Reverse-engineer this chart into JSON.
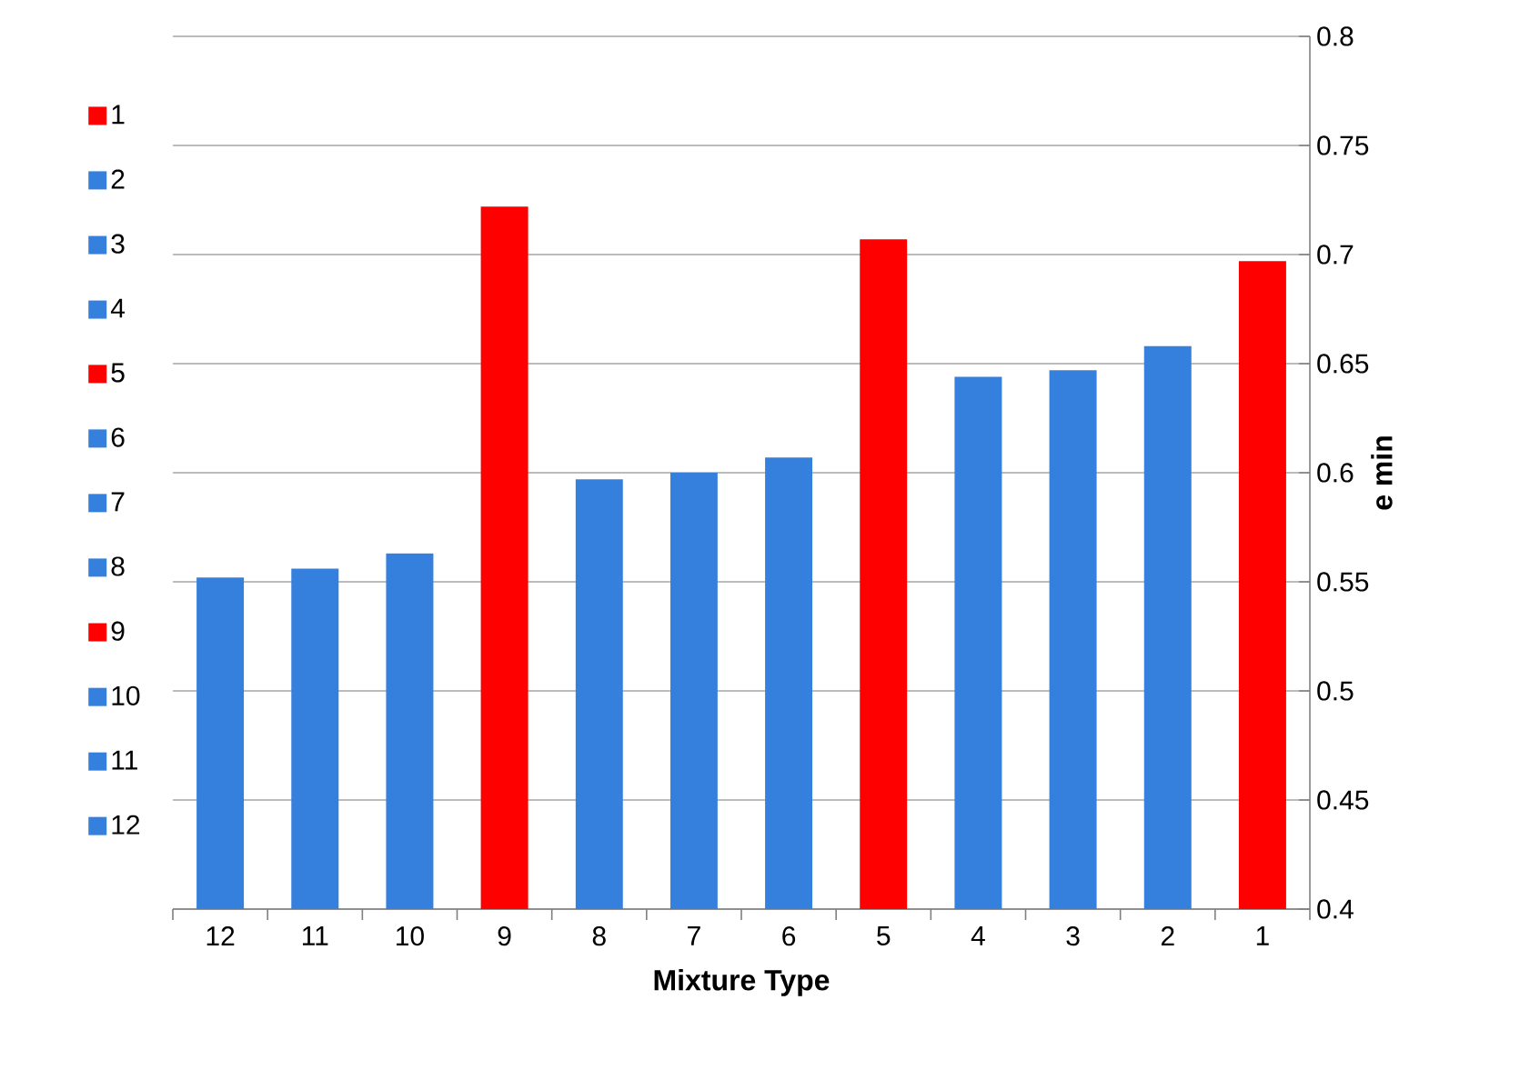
{
  "chart_data": {
    "type": "bar",
    "xlabel": "Mixture Type",
    "ylabel": "e min",
    "categories": [
      "12",
      "11",
      "10",
      "9",
      "8",
      "7",
      "6",
      "5",
      "4",
      "3",
      "2",
      "1"
    ],
    "series": [
      {
        "name": "1",
        "color": "#ff0000",
        "values": [
          null,
          null,
          null,
          null,
          null,
          null,
          null,
          null,
          null,
          null,
          null,
          0.697
        ]
      },
      {
        "name": "2",
        "color": "#3580dd",
        "values": [
          null,
          null,
          null,
          null,
          null,
          null,
          null,
          null,
          null,
          null,
          0.658,
          null
        ]
      },
      {
        "name": "3",
        "color": "#3580dd",
        "values": [
          null,
          null,
          null,
          null,
          null,
          null,
          null,
          null,
          null,
          0.647,
          null,
          null
        ]
      },
      {
        "name": "4",
        "color": "#3580dd",
        "values": [
          null,
          null,
          null,
          null,
          null,
          null,
          null,
          null,
          0.644,
          null,
          null,
          null
        ]
      },
      {
        "name": "5",
        "color": "#ff0000",
        "values": [
          null,
          null,
          null,
          null,
          null,
          null,
          null,
          0.707,
          null,
          null,
          null,
          null
        ]
      },
      {
        "name": "6",
        "color": "#3580dd",
        "values": [
          null,
          null,
          null,
          null,
          null,
          null,
          0.607,
          null,
          null,
          null,
          null,
          null
        ]
      },
      {
        "name": "7",
        "color": "#3580dd",
        "values": [
          null,
          null,
          null,
          null,
          null,
          0.6,
          null,
          null,
          null,
          null,
          null,
          null
        ]
      },
      {
        "name": "8",
        "color": "#3580dd",
        "values": [
          null,
          null,
          null,
          null,
          0.597,
          null,
          null,
          null,
          null,
          null,
          null,
          null
        ]
      },
      {
        "name": "9",
        "color": "#ff0000",
        "values": [
          null,
          null,
          null,
          0.722,
          null,
          null,
          null,
          null,
          null,
          null,
          null,
          null
        ]
      },
      {
        "name": "10",
        "color": "#3580dd",
        "values": [
          null,
          null,
          0.563,
          null,
          null,
          null,
          null,
          null,
          null,
          null,
          null,
          null
        ]
      },
      {
        "name": "11",
        "color": "#3580dd",
        "values": [
          null,
          0.556,
          null,
          null,
          null,
          null,
          null,
          null,
          null,
          null,
          null,
          null
        ]
      },
      {
        "name": "12",
        "color": "#3580dd",
        "values": [
          0.552,
          null,
          null,
          null,
          null,
          null,
          null,
          null,
          null,
          null,
          null,
          null
        ]
      }
    ],
    "ylim": [
      0.4,
      0.8
    ],
    "yticks": [
      0.4,
      0.45,
      0.5,
      0.55,
      0.6,
      0.65,
      0.7,
      0.75,
      0.8
    ],
    "grid": "y",
    "legend": "left"
  }
}
